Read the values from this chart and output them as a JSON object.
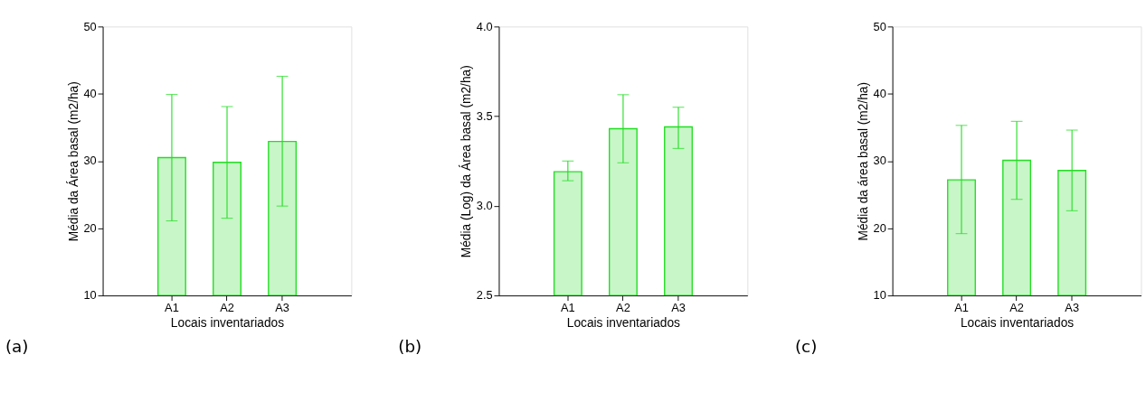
{
  "chart_data": [
    {
      "type": "bar",
      "categories": [
        "A1",
        "A2",
        "A3"
      ],
      "values": [
        30.5,
        29.8,
        32.9
      ],
      "color": "#22dd22",
      "errors": [
        [
          21.1,
          39.9
        ],
        [
          21.5,
          38.1
        ],
        [
          23.3,
          42.6
        ]
      ],
      "xlabel": "Locais inventariados",
      "ylabel": "Média da Área basal (m2/ha)",
      "ylim": [
        10,
        50
      ],
      "yticks": [
        10,
        20,
        30,
        40,
        50
      ],
      "grid": false,
      "annotations": [
        "(a)"
      ]
    },
    {
      "type": "bar",
      "categories": [
        "A1",
        "A2",
        "A3"
      ],
      "values": [
        3.19,
        3.43,
        3.44
      ],
      "color": "#22dd22",
      "errors": [
        [
          3.14,
          3.25
        ],
        [
          3.24,
          3.62
        ],
        [
          3.32,
          3.55
        ]
      ],
      "xlabel": "Locais inventariados",
      "ylabel": "Média (Log) da Área basal (m2/ha)",
      "ylim": [
        2.5,
        4.0
      ],
      "yticks": [
        {
          "value": 2.5,
          "label": "2.5"
        },
        {
          "value": 3.0,
          "label": "3.0"
        },
        {
          "value": 3.5,
          "label": "3.5"
        },
        {
          "value": 4.0,
          "label": "4.0"
        }
      ],
      "grid": false,
      "annotations": [
        "(b)"
      ]
    },
    {
      "type": "bar",
      "categories": [
        "A1",
        "A2",
        "A3"
      ],
      "values": [
        27.2,
        30.1,
        28.6
      ],
      "color": "#22dd22",
      "errors": [
        [
          19.2,
          35.3
        ],
        [
          24.3,
          35.9
        ],
        [
          22.6,
          34.6
        ]
      ],
      "xlabel": "Locais inventariados",
      "ylabel": "Média da área basal (m2/ha)",
      "ylim": [
        10,
        50
      ],
      "yticks": [
        10,
        20,
        30,
        40,
        50
      ],
      "grid": false,
      "annotations": [
        "(c)"
      ]
    }
  ]
}
